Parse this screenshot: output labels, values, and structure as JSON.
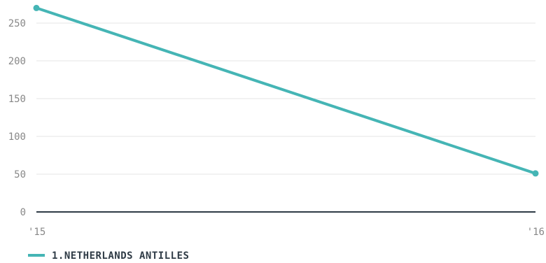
{
  "chart_data": {
    "type": "line",
    "x": [
      "'15",
      "'16"
    ],
    "series": [
      {
        "name": "1.NETHERLANDS ANTILLES",
        "values": [
          270,
          51
        ]
      }
    ],
    "yticks": [
      "0",
      "50",
      "100",
      "150",
      "200",
      "250"
    ],
    "ylim": [
      0,
      270
    ],
    "grid": true,
    "legend": "bottom-left",
    "colors": {
      "series": "#45b5b5",
      "axis": "#2f3b46",
      "grid": "#e6e6e6"
    }
  }
}
